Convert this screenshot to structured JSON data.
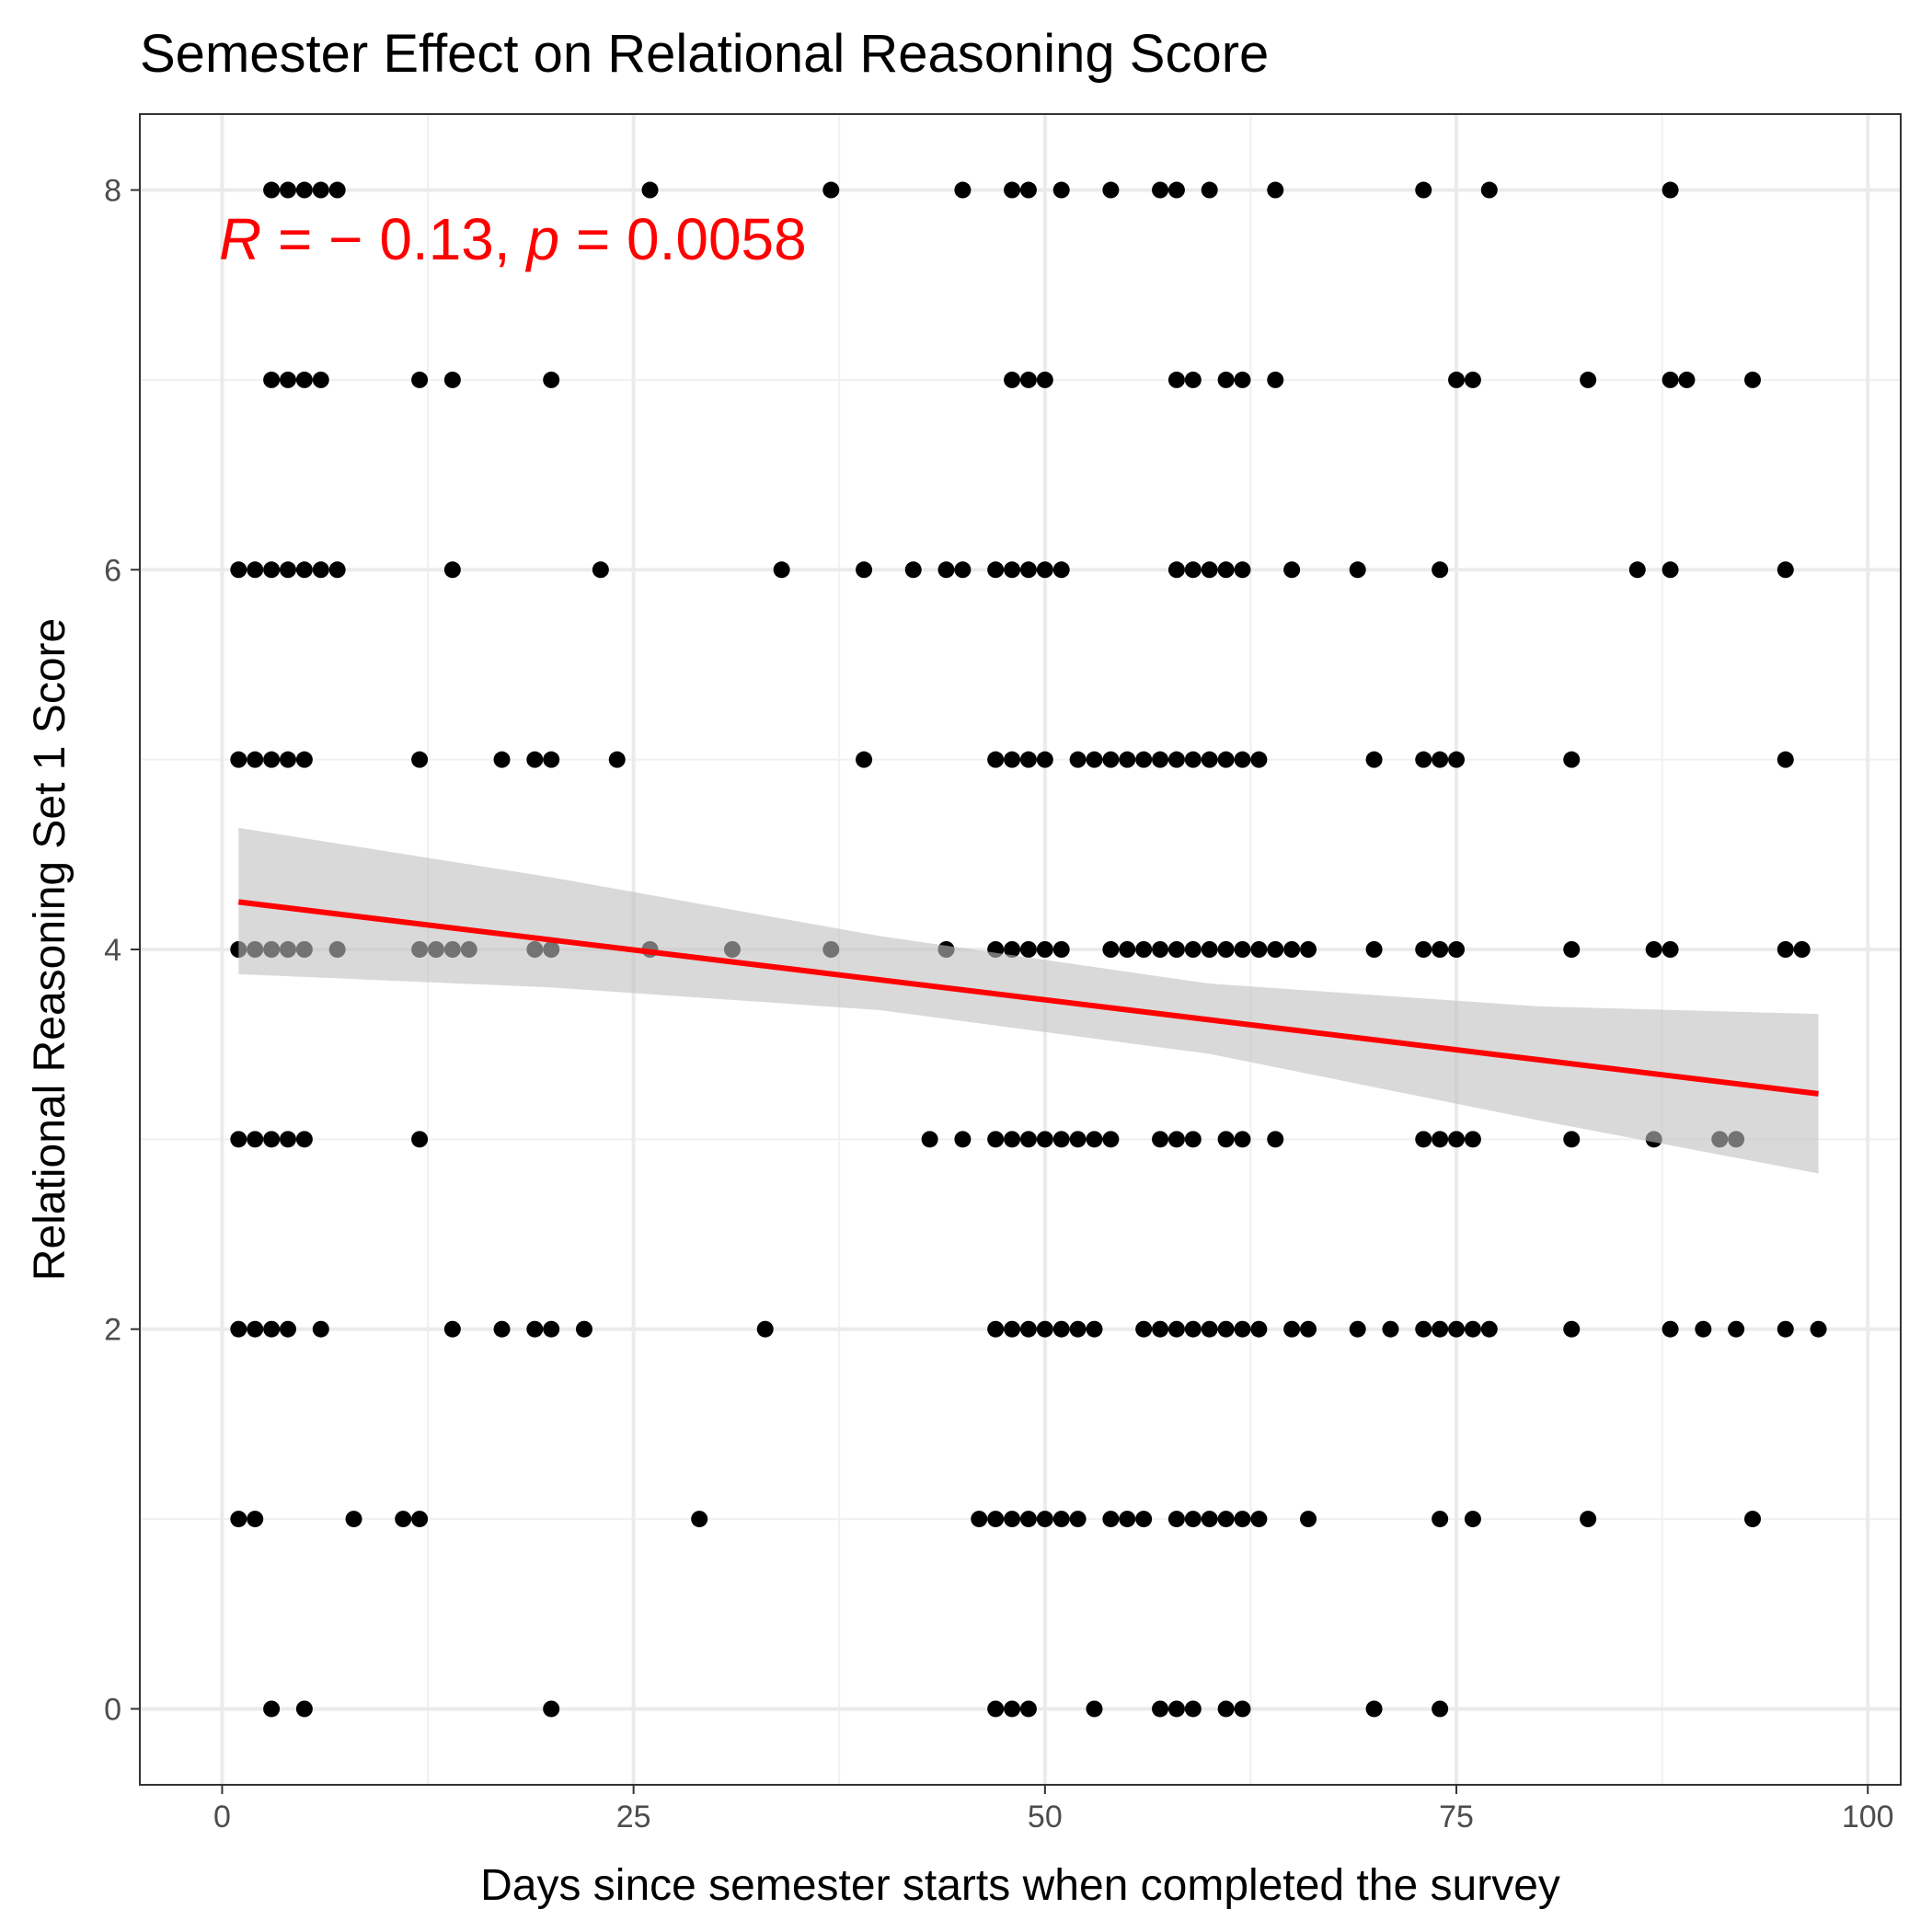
{
  "chart_data": {
    "type": "scatter",
    "title": "Semester Effect on Relational Reasoning Score",
    "xlabel": "Days since semester starts when completed the survey",
    "ylabel": "Relational Reasoning Set 1 Score",
    "xlim": [
      -5,
      102
    ],
    "ylim": [
      -0.4,
      8.4
    ],
    "x_ticks": [
      0,
      25,
      50,
      75,
      100
    ],
    "y_ticks": [
      0,
      2,
      4,
      6,
      8
    ],
    "grid": true,
    "annotation": {
      "r_symbol": "R",
      "r_text": " = − 0.13, ",
      "p_symbol": "p",
      "p_text": " = 0.0058",
      "color": "#ff0000"
    },
    "point_color": "#000000",
    "points": [
      {
        "score": 8,
        "days": [
          3,
          4,
          5,
          6,
          7,
          26,
          37,
          45,
          48,
          49,
          51,
          54,
          57,
          58,
          60,
          64,
          73,
          77,
          88
        ]
      },
      {
        "score": 7,
        "days": [
          3,
          4,
          5,
          6,
          12,
          14,
          20,
          48,
          49,
          50,
          58,
          59,
          61,
          62,
          64,
          75,
          76,
          83,
          88,
          89,
          93
        ]
      },
      {
        "score": 6,
        "days": [
          1,
          2,
          3,
          4,
          5,
          6,
          7,
          14,
          23,
          34,
          39,
          42,
          44,
          45,
          47,
          48,
          49,
          50,
          51,
          58,
          59,
          60,
          61,
          62,
          65,
          69,
          74,
          86,
          88,
          95
        ]
      },
      {
        "score": 5,
        "days": [
          1,
          2,
          3,
          4,
          5,
          12,
          17,
          19,
          20,
          24,
          39,
          47,
          48,
          49,
          50,
          52,
          53,
          54,
          55,
          56,
          57,
          58,
          59,
          60,
          61,
          62,
          63,
          70,
          73,
          74,
          75,
          82,
          95
        ]
      },
      {
        "score": 4,
        "days": [
          1,
          2,
          3,
          4,
          5,
          7,
          12,
          13,
          14,
          15,
          19,
          20,
          26,
          31,
          37,
          44,
          47,
          48,
          49,
          50,
          51,
          54,
          55,
          56,
          57,
          58,
          59,
          60,
          61,
          62,
          63,
          64,
          65,
          66,
          70,
          73,
          74,
          75,
          82,
          87,
          88,
          95,
          96
        ]
      },
      {
        "score": 3,
        "days": [
          1,
          2,
          3,
          4,
          5,
          12,
          43,
          45,
          47,
          48,
          49,
          50,
          51,
          52,
          53,
          54,
          57,
          58,
          59,
          61,
          62,
          64,
          73,
          74,
          75,
          76,
          82,
          87,
          91,
          92
        ]
      },
      {
        "score": 2,
        "days": [
          1,
          2,
          3,
          4,
          6,
          14,
          17,
          19,
          20,
          22,
          33,
          47,
          48,
          49,
          50,
          51,
          52,
          53,
          56,
          57,
          58,
          59,
          60,
          61,
          62,
          63,
          65,
          66,
          69,
          71,
          73,
          74,
          75,
          76,
          77,
          82,
          88,
          90,
          92,
          95,
          97
        ]
      },
      {
        "score": 1,
        "days": [
          1,
          2,
          8,
          11,
          12,
          29,
          46,
          47,
          48,
          49,
          50,
          51,
          52,
          54,
          55,
          56,
          58,
          59,
          60,
          61,
          62,
          63,
          66,
          74,
          76,
          83,
          93
        ]
      },
      {
        "score": 0,
        "days": [
          3,
          5,
          20,
          47,
          48,
          49,
          53,
          57,
          58,
          59,
          61,
          62,
          70,
          74
        ]
      }
    ],
    "fit": {
      "color": "#ff0000",
      "x": [
        1,
        97
      ],
      "y": [
        4.25,
        3.24
      ]
    },
    "confidence_band": {
      "color": "#bfbfbf",
      "x": [
        1,
        20,
        40,
        60,
        80,
        97
      ],
      "lower": [
        3.87,
        3.8,
        3.68,
        3.45,
        3.1,
        2.82
      ],
      "upper": [
        4.64,
        4.38,
        4.07,
        3.82,
        3.7,
        3.66
      ]
    }
  }
}
